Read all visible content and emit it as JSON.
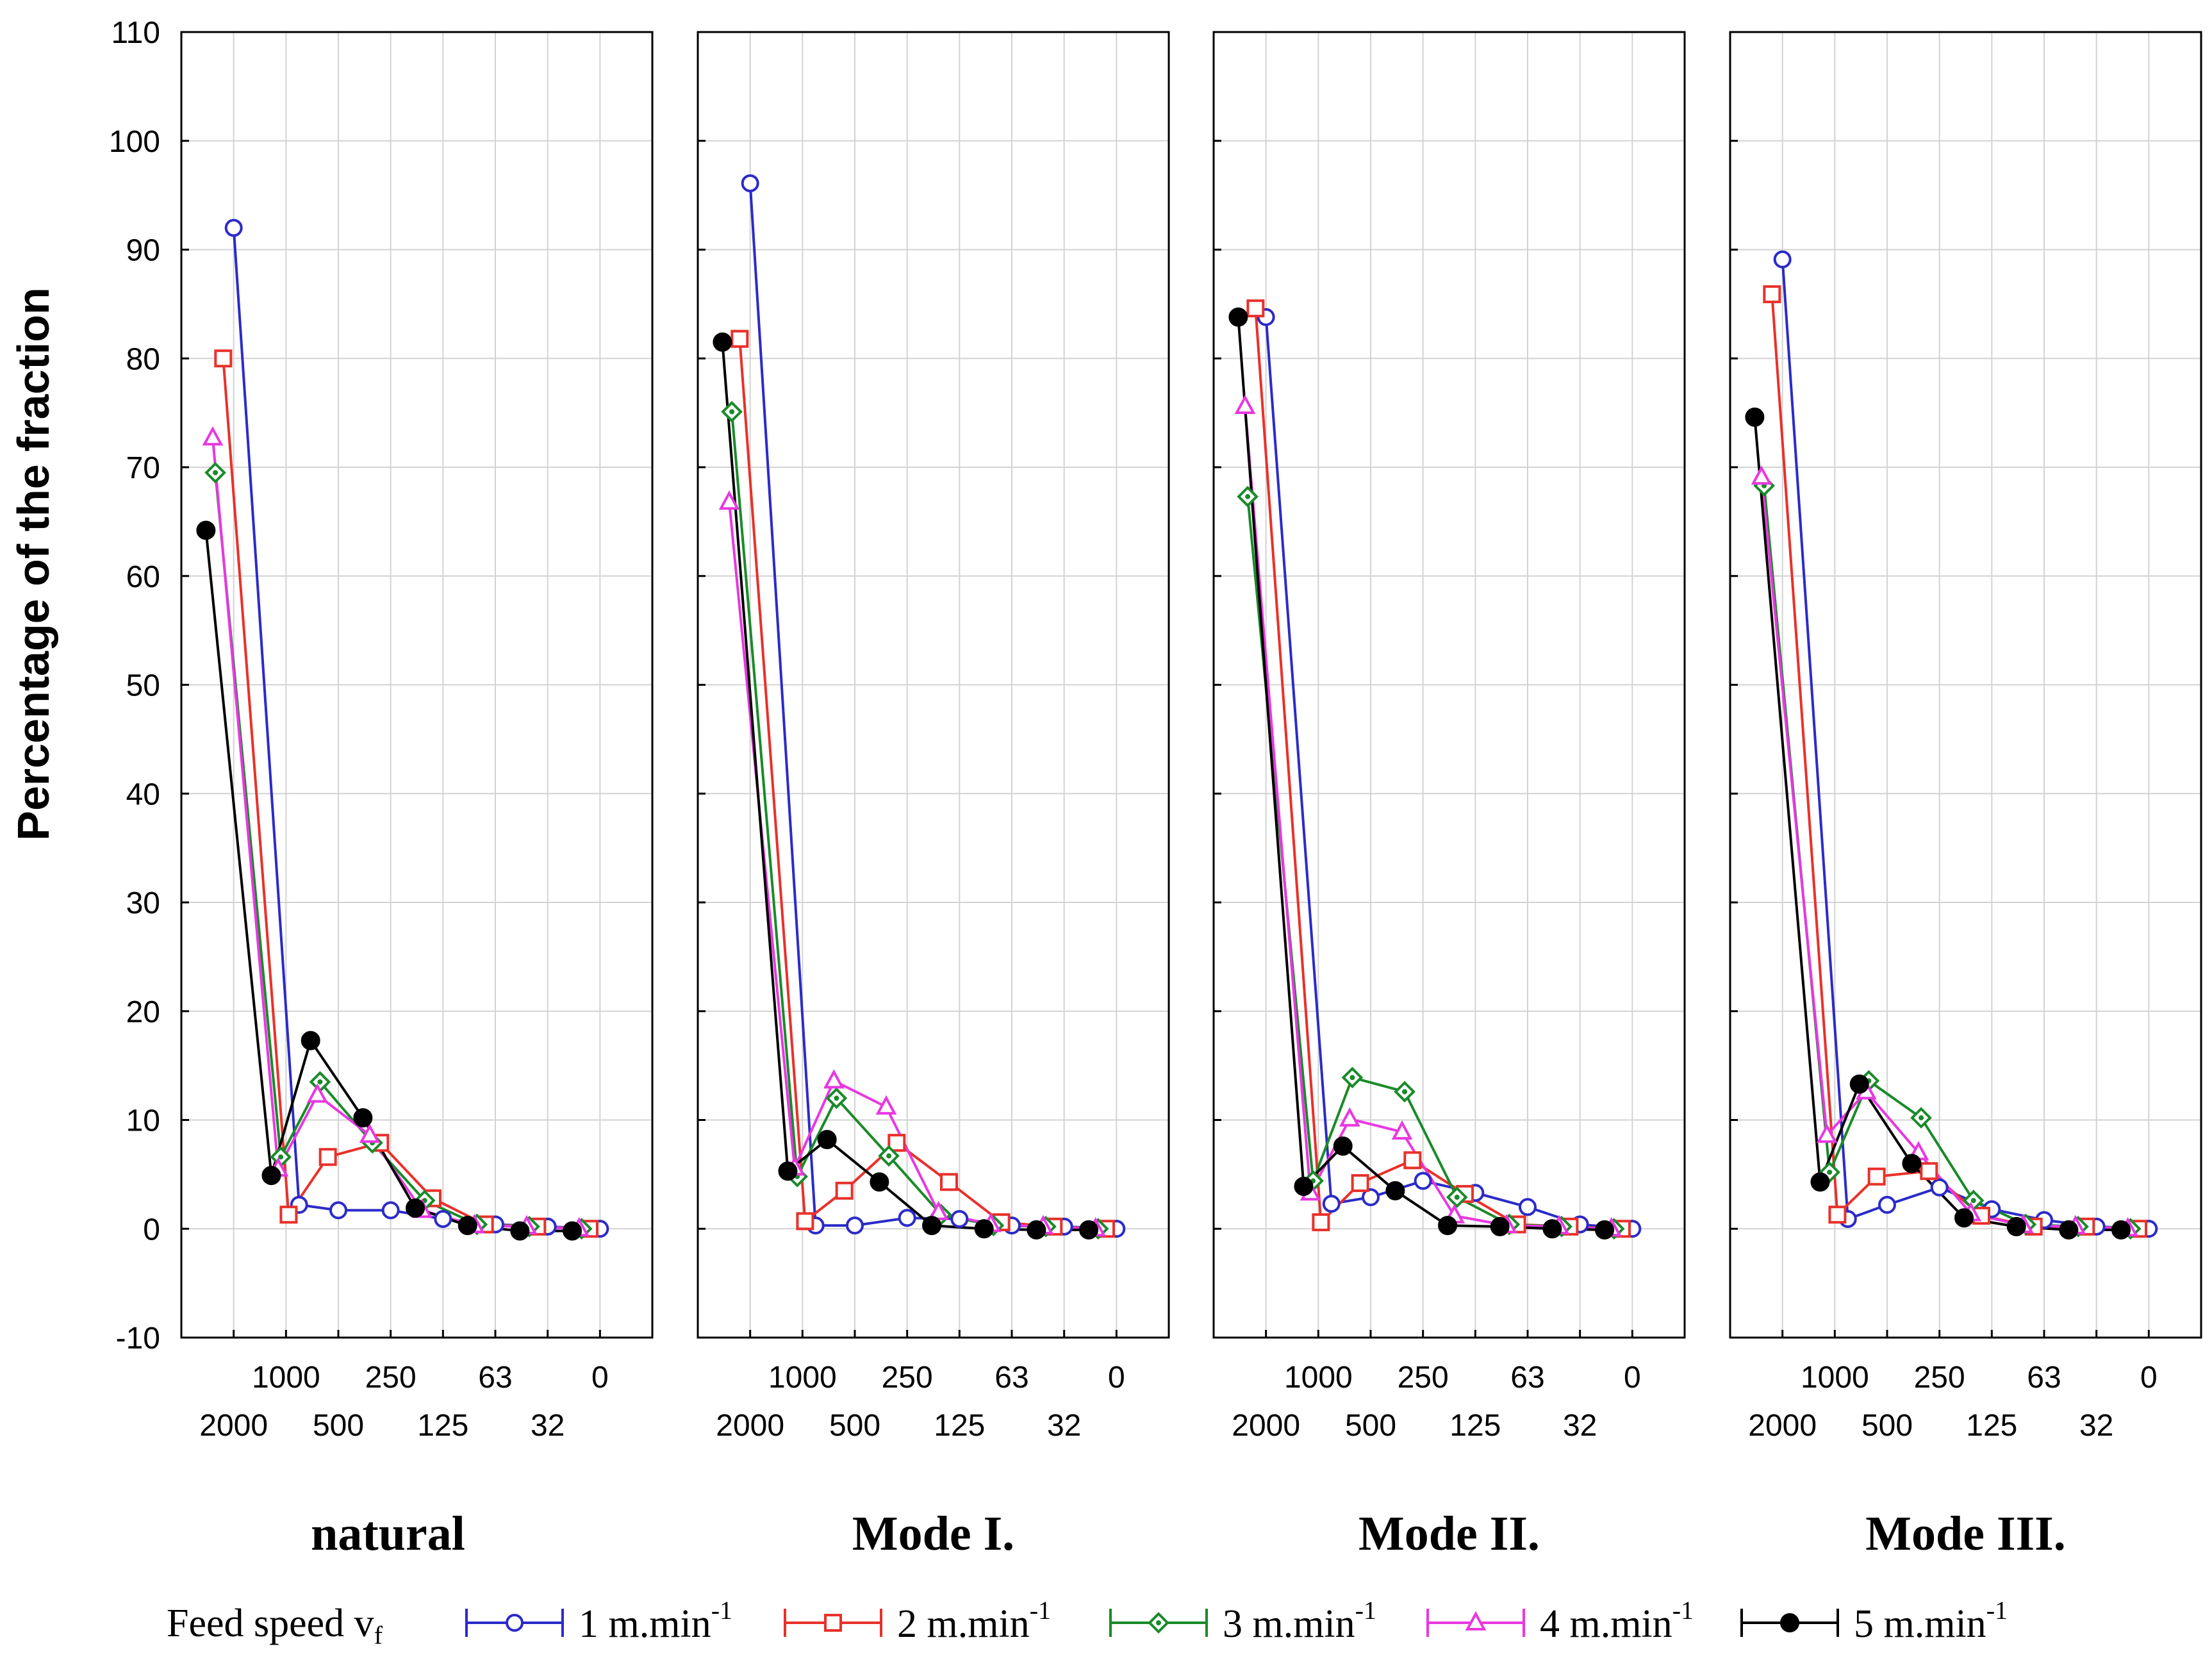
{
  "chart_data": {
    "type": "line",
    "ylabel": "Percentage of the fraction",
    "ylim": [
      -10,
      110
    ],
    "y_ticks": [
      "-10",
      "0",
      "10",
      "20",
      "30",
      "40",
      "50",
      "60",
      "70",
      "80",
      "90",
      "100",
      "110"
    ],
    "x_categories": [
      "2000",
      "1000",
      "500",
      "250",
      "125",
      "63",
      "32",
      "0"
    ],
    "x_tick_labels_upper": [
      "1000",
      "250",
      "63",
      "0"
    ],
    "x_tick_labels_lower": [
      "2000",
      "500",
      "125",
      "32"
    ],
    "grid": true,
    "legend": {
      "title": "Feed speed v",
      "title_subscript": "f",
      "position": "bottom",
      "entries": [
        {
          "name": "1 m.min",
          "sup": "-1",
          "color": "#2b2bc8",
          "marker": "circle"
        },
        {
          "name": "2 m.min",
          "sup": "-1",
          "color": "#e8312b",
          "marker": "square"
        },
        {
          "name": "3 m.min",
          "sup": "-1",
          "color": "#1a8a2a",
          "marker": "diamond"
        },
        {
          "name": "4 m.min",
          "sup": "-1",
          "color": "#e838e0",
          "marker": "triangle"
        },
        {
          "name": "5 m.min",
          "sup": "-1",
          "color": "#000000",
          "marker": "dot"
        }
      ]
    },
    "panels": [
      {
        "title": "natural",
        "series": [
          {
            "name": "1 m.min-1",
            "values": [
              92,
              2.2,
              1.7,
              1.7,
              0.9,
              0.4,
              0.2,
              0
            ]
          },
          {
            "name": "2 m.min-1",
            "values": [
              80,
              1.3,
              6.6,
              7.9,
              2.8,
              0.4,
              0.2,
              0
            ]
          },
          {
            "name": "3 m.min-1",
            "values": [
              69.5,
              6.6,
              13.5,
              7.9,
              2.6,
              0.4,
              0.2,
              0
            ]
          },
          {
            "name": "4 m.min-1",
            "values": [
              72.7,
              5.5,
              12.3,
              8.6,
              1.7,
              0.3,
              0.2,
              0
            ]
          },
          {
            "name": "5 m.min-1",
            "values": [
              64.2,
              4.9,
              17.3,
              10.2,
              1.9,
              0.3,
              -0.2,
              -0.2
            ]
          }
        ]
      },
      {
        "title": "Mode I.",
        "series": [
          {
            "name": "1 m.min-1",
            "values": [
              96.1,
              0.3,
              0.3,
              1.0,
              0.9,
              0.3,
              0.2,
              0
            ]
          },
          {
            "name": "2 m.min-1",
            "values": [
              81.8,
              0.7,
              3.5,
              7.9,
              4.3,
              0.6,
              0.2,
              0
            ]
          },
          {
            "name": "3 m.min-1",
            "values": [
              75.1,
              4.8,
              12.0,
              6.7,
              1.3,
              0.3,
              0.2,
              0
            ]
          },
          {
            "name": "4 m.min-1",
            "values": [
              66.8,
              5.6,
              13.6,
              11.2,
              1.5,
              0.4,
              0.2,
              0
            ]
          },
          {
            "name": "5 m.min-1",
            "values": [
              81.5,
              5.3,
              8.2,
              4.3,
              0.3,
              0,
              -0.1,
              -0.1
            ]
          }
        ]
      },
      {
        "title": "Mode II.",
        "series": [
          {
            "name": "1 m.min-1",
            "values": [
              83.8,
              2.3,
              2.9,
              4.4,
              3.3,
              2.0,
              0.4,
              0
            ]
          },
          {
            "name": "2 m.min-1",
            "values": [
              84.6,
              0.6,
              4.2,
              6.3,
              3.2,
              0.4,
              0.2,
              0
            ]
          },
          {
            "name": "3 m.min-1",
            "values": [
              67.3,
              4.4,
              13.9,
              12.6,
              2.9,
              0.4,
              0.2,
              0
            ]
          },
          {
            "name": "4 m.min-1",
            "values": [
              75.6,
              3.3,
              10.1,
              8.9,
              1.2,
              0.3,
              0.2,
              0
            ]
          },
          {
            "name": "5 m.min-1",
            "values": [
              83.8,
              3.9,
              7.6,
              3.5,
              0.3,
              0.2,
              0,
              -0.1
            ]
          }
        ]
      },
      {
        "title": "Mode III.",
        "series": [
          {
            "name": "1 m.min-1",
            "values": [
              89.1,
              0.9,
              2.2,
              3.8,
              1.8,
              0.8,
              0.2,
              0
            ]
          },
          {
            "name": "2 m.min-1",
            "values": [
              85.9,
              1.3,
              4.8,
              5.3,
              1.2,
              0.2,
              0.2,
              0
            ]
          },
          {
            "name": "3 m.min-1",
            "values": [
              68.3,
              5.2,
              13.6,
              10.2,
              2.6,
              0.4,
              0.2,
              0
            ]
          },
          {
            "name": "4 m.min-1",
            "values": [
              69.1,
              8.6,
              12.6,
              7.0,
              1.4,
              0.3,
              0.2,
              0
            ]
          },
          {
            "name": "5 m.min-1",
            "values": [
              74.6,
              4.3,
              13.3,
              6.0,
              1.0,
              0.2,
              -0.1,
              -0.1
            ]
          }
        ]
      }
    ]
  }
}
